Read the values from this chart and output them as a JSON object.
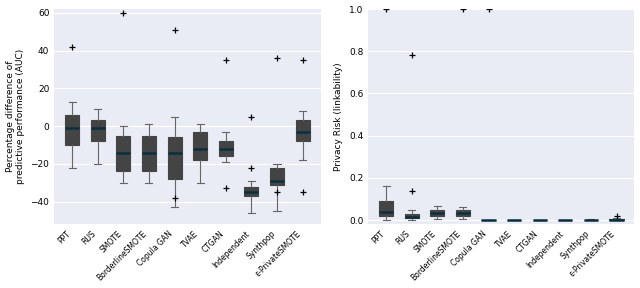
{
  "categories": [
    "PPT",
    "RUS",
    "SMOTE",
    "BorderlineSMOTE",
    "Copula GAN",
    "TVAE",
    "CTGAN",
    "Independent",
    "Synthpop",
    "ε-PrivateSMOTE"
  ],
  "box_facecolor": "#2ABFBB",
  "box_edgecolor": "#444444",
  "median_color": "#0a3040",
  "whisker_color": "#666666",
  "flier_color": "#888888",
  "background_color": "#E9ECF4",
  "grid_color": "#FFFFFF",
  "left_plot": {
    "ylabel": "Percentage difference of\npredictive performance (AUC)",
    "ylim": [
      -52,
      62
    ],
    "yticks": [
      -40,
      -20,
      0,
      20,
      40,
      60
    ],
    "boxes": [
      {
        "q1": -10,
        "median": -1,
        "q3": 6,
        "whislo": -22,
        "whishi": 13,
        "fliers": [
          42
        ]
      },
      {
        "q1": -8,
        "median": -1,
        "q3": 3,
        "whislo": -20,
        "whishi": 9,
        "fliers": []
      },
      {
        "q1": -24,
        "median": -14,
        "q3": -5,
        "whislo": -30,
        "whishi": 0,
        "fliers": [
          60
        ]
      },
      {
        "q1": -24,
        "median": -14,
        "q3": -5,
        "whislo": -30,
        "whishi": 1,
        "fliers": []
      },
      {
        "q1": -28,
        "median": -14,
        "q3": -6,
        "whislo": -43,
        "whishi": 5,
        "fliers": [
          51,
          -38
        ]
      },
      {
        "q1": -18,
        "median": -12,
        "q3": -3,
        "whislo": -30,
        "whishi": 1,
        "fliers": []
      },
      {
        "q1": -16,
        "median": -12,
        "q3": -8,
        "whislo": -19,
        "whishi": -3,
        "fliers": [
          35,
          -33
        ]
      },
      {
        "q1": -37,
        "median": -35,
        "q3": -32,
        "whislo": -46,
        "whishi": -29,
        "fliers": [
          5,
          -22
        ]
      },
      {
        "q1": -31,
        "median": -29,
        "q3": -22,
        "whislo": -45,
        "whishi": -20,
        "fliers": [
          36,
          -35
        ]
      },
      {
        "q1": -8,
        "median": -3,
        "q3": 3,
        "whislo": -18,
        "whishi": 8,
        "fliers": [
          35,
          -35
        ]
      }
    ]
  },
  "right_plot": {
    "ylabel": "Privacy Risk (linkability)",
    "ylim": [
      -0.02,
      1.0
    ],
    "yticks": [
      0.0,
      0.2,
      0.4,
      0.6,
      0.8,
      1.0
    ],
    "boxes": [
      {
        "q1": 0.02,
        "median": 0.04,
        "q3": 0.09,
        "whislo": 0.0,
        "whishi": 0.16,
        "fliers": [
          1.0
        ]
      },
      {
        "q1": 0.01,
        "median": 0.015,
        "q3": 0.03,
        "whislo": 0.0,
        "whishi": 0.05,
        "fliers": [
          0.78,
          0.14
        ]
      },
      {
        "q1": 0.02,
        "median": 0.035,
        "q3": 0.05,
        "whislo": 0.005,
        "whishi": 0.065,
        "fliers": []
      },
      {
        "q1": 0.02,
        "median": 0.032,
        "q3": 0.048,
        "whislo": 0.005,
        "whishi": 0.06,
        "fliers": [
          1.0
        ]
      },
      {
        "q1": 0.0,
        "median": 0.001,
        "q3": 0.002,
        "whislo": 0.0,
        "whishi": 0.002,
        "fliers": [
          1.0
        ]
      },
      {
        "q1": 0.0,
        "median": 0.001,
        "q3": 0.002,
        "whislo": 0.0,
        "whishi": 0.002,
        "fliers": []
      },
      {
        "q1": 0.0,
        "median": 0.001,
        "q3": 0.002,
        "whislo": 0.0,
        "whishi": 0.002,
        "fliers": []
      },
      {
        "q1": 0.0,
        "median": 0.001,
        "q3": 0.002,
        "whislo": 0.0,
        "whishi": 0.002,
        "fliers": []
      },
      {
        "q1": 0.0,
        "median": 0.001,
        "q3": 0.003,
        "whislo": 0.0,
        "whishi": 0.004,
        "fliers": []
      },
      {
        "q1": 0.0,
        "median": 0.001,
        "q3": 0.005,
        "whislo": 0.0,
        "whishi": 0.01,
        "fliers": [
          0.02
        ]
      }
    ]
  }
}
